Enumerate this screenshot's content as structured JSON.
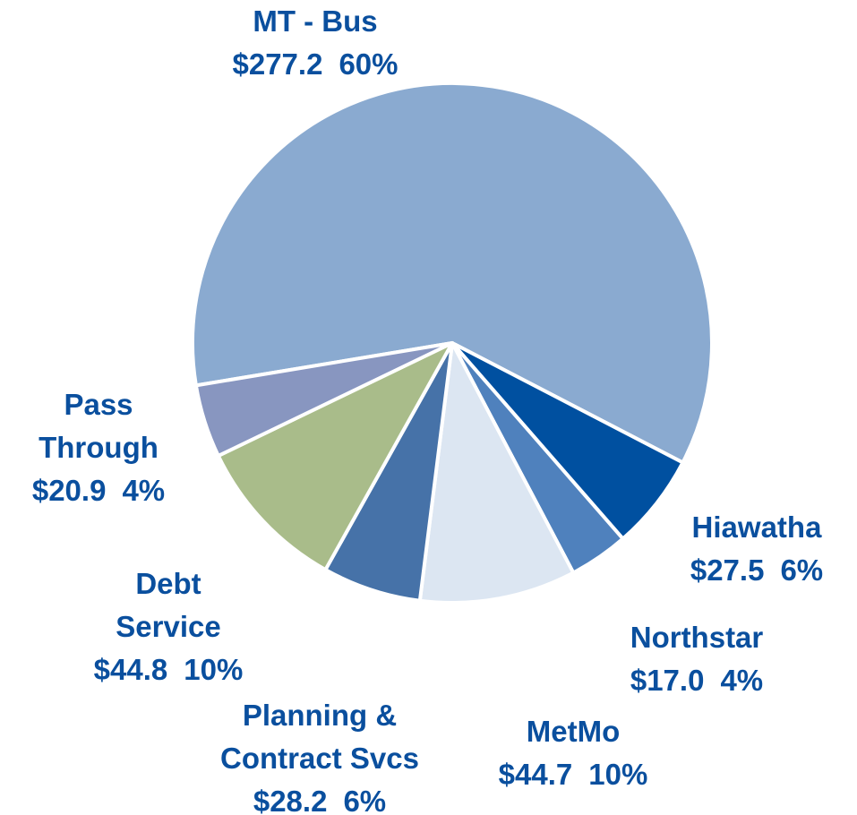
{
  "chart_data": {
    "type": "pie",
    "categories": [
      "MT - Bus",
      "Hiawatha",
      "Northstar",
      "MetMo",
      "Planning &\nContract Svcs",
      "Debt\nService",
      "Pass\nThrough"
    ],
    "values": [
      277.2,
      27.5,
      17.0,
      44.7,
      28.2,
      44.8,
      20.9
    ],
    "value_labels": [
      "$277.2",
      "$27.5",
      "$17.0",
      "$44.7",
      "$28.2",
      "$44.8",
      "$20.9"
    ],
    "percents": [
      60,
      6,
      4,
      10,
      6,
      10,
      4
    ],
    "percent_labels": [
      "60%",
      "6%",
      "4%",
      "10%",
      "6%",
      "10%",
      "4%"
    ],
    "colors": [
      "#8aaad0",
      "#0050a0",
      "#4f81bd",
      "#dce6f2",
      "#4672a8",
      "#a9bc8a",
      "#8896c0"
    ]
  }
}
